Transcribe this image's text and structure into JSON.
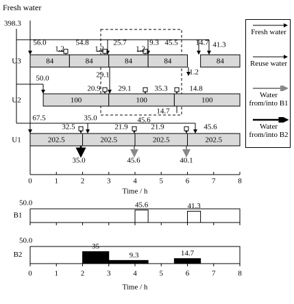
{
  "title": "Fresh water",
  "fresh_total": "398.3",
  "units": [
    {
      "label": "U3",
      "tasks": [
        {
          "label": "84",
          "start": 0,
          "end": 1.5
        },
        {
          "label": "84",
          "start": 1.5,
          "end": 3
        },
        {
          "label": "84",
          "start": 3,
          "end": 4.5
        },
        {
          "label": "84",
          "start": 4.5,
          "end": 6
        },
        {
          "label": "84",
          "start": 6.5,
          "end": 8
        }
      ]
    },
    {
      "label": "U2",
      "tasks": [
        {
          "label": "100",
          "start": 0.5,
          "end": 3
        },
        {
          "label": "100",
          "start": 3,
          "end": 5.5
        },
        {
          "label": "100",
          "start": 5.5,
          "end": 8
        }
      ]
    },
    {
      "label": "U1",
      "tasks": [
        {
          "label": "202.5",
          "start": 0,
          "end": 2
        },
        {
          "label": "202.5",
          "start": 2,
          "end": 4
        },
        {
          "label": "202.5",
          "start": 4,
          "end": 6
        },
        {
          "label": "202.5",
          "start": 6,
          "end": 8
        }
      ]
    }
  ],
  "flows": [
    "56.0",
    "54.8",
    "1.2",
    "1.2",
    "25.7",
    "1.2",
    "9.3",
    "45.5",
    "14.7",
    "41.3",
    "29.1",
    "1.2",
    "50.0",
    "20.9",
    "29.1",
    "35.3",
    "14.8",
    "14.7",
    "67.5",
    "32.5",
    "35.0",
    "45.6",
    "21.9",
    "21.9",
    "45.6",
    "35.0",
    "45.6",
    "40.1"
  ],
  "main_axis": {
    "ticks": [
      0,
      1,
      2,
      3,
      4,
      5,
      6,
      7,
      8
    ],
    "label": "Time / h"
  },
  "tanks": [
    {
      "label": "B1",
      "ylim": [
        0,
        50
      ],
      "ytick": {
        "value": 50,
        "label": "50.0"
      },
      "fill": "#ffffff",
      "bars": [
        {
          "start": 4,
          "end": 4.5,
          "value": 45.6,
          "label": "45.6"
        },
        {
          "start": 6,
          "end": 6.5,
          "value": 41.3,
          "label": "41.3"
        }
      ]
    },
    {
      "label": "B2",
      "ylim": [
        0,
        50
      ],
      "ytick": {
        "value": 50,
        "label": "50.0"
      },
      "fill": "#000000",
      "bars": [
        {
          "start": 2,
          "end": 3,
          "value": 35,
          "label": "35"
        },
        {
          "start": 3,
          "end": 4.5,
          "value": 9.3,
          "label": "9.3"
        },
        {
          "start": 5.5,
          "end": 6.5,
          "value": 14.7,
          "label": "14.7"
        }
      ]
    }
  ],
  "tank_axis": {
    "ticks": [
      0,
      1,
      2,
      3,
      4,
      5,
      6,
      7,
      8
    ],
    "label": "Time / h"
  },
  "legend": [
    "Fresh water",
    "Reuse water",
    "Water from/into B1",
    "Water from/into B2"
  ]
}
